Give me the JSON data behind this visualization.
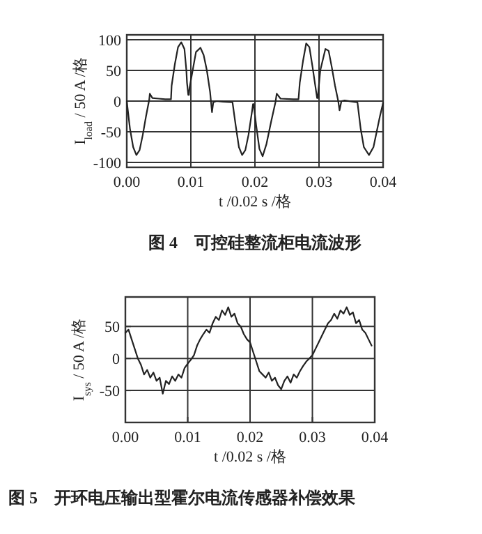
{
  "chart_data": [
    {
      "type": "line",
      "title": "图 4　可控硅整流柜电流波形",
      "xlabel": "t /0.02 s /格",
      "ylabel": "I$_{load}$ / 50 A /格",
      "xlim": [
        0,
        0.04
      ],
      "ylim": [
        -108,
        108
      ],
      "xticks": [
        {
          "value": 0,
          "label": "0.00"
        },
        {
          "value": 0.01,
          "label": "0.01"
        },
        {
          "value": 0.02,
          "label": "0.02"
        },
        {
          "value": 0.03,
          "label": "0.03"
        },
        {
          "value": 0.04,
          "label": "0.04"
        }
      ],
      "yticks": [
        100,
        50,
        0,
        -50,
        -100
      ],
      "grid": true,
      "line_style": "solid",
      "series": [
        {
          "color": "#222222",
          "x": [
            0,
            0.0005,
            0.001,
            0.0015,
            0.002,
            0.0025,
            0.003,
            0.0035,
            0.0036,
            0.004,
            0.005,
            0.006,
            0.0069,
            0.007,
            0.0075,
            0.008,
            0.0085,
            0.009,
            0.0093,
            0.0094,
            0.0096,
            0.0097,
            0.0098,
            0.0102,
            0.0108,
            0.0115,
            0.012,
            0.0125,
            0.013,
            0.0133,
            0.0135,
            0.014,
            0.015,
            0.0165,
            0.017,
            0.0175,
            0.018,
            0.0185,
            0.019,
            0.0195,
            0.0197,
            0.0198,
            0.0202,
            0.0207,
            0.0212,
            0.0218,
            0.0225,
            0.0232,
            0.0234,
            0.024,
            0.026,
            0.0268,
            0.027,
            0.0275,
            0.028,
            0.0285,
            0.029,
            0.0297,
            0.0298,
            0.0302,
            0.031,
            0.0315,
            0.032,
            0.0325,
            0.033,
            0.0332,
            0.0335,
            0.034,
            0.036,
            0.0365,
            0.037,
            0.0378,
            0.0385,
            0.039,
            0.0395,
            0.04
          ],
          "values": [
            0,
            -45,
            -75,
            -88,
            -80,
            -55,
            -25,
            2,
            12,
            5,
            4,
            3,
            3,
            25,
            60,
            88,
            96,
            85,
            50,
            30,
            10,
            10,
            22,
            45,
            80,
            87,
            75,
            50,
            15,
            -18,
            -2,
            0,
            -1,
            -2,
            -40,
            -75,
            -88,
            -80,
            -55,
            -20,
            -5,
            -5,
            -40,
            -78,
            -90,
            -70,
            -35,
            -2,
            12,
            4,
            3,
            3,
            30,
            65,
            94,
            88,
            55,
            5,
            5,
            50,
            85,
            82,
            55,
            25,
            0,
            -15,
            0,
            1,
            -2,
            -45,
            -75,
            -88,
            -75,
            -50,
            -25,
            -3
          ]
        }
      ]
    },
    {
      "type": "line",
      "title": "图 5　开环电压输出型霍尔电流传感器补偿效果",
      "xlabel": "t /0.02 s /格",
      "ylabel": "I$_{sys}$ / 50 A /格",
      "xlim": [
        0,
        0.04
      ],
      "ylim": [
        -100,
        96
      ],
      "xticks": [
        {
          "value": 0,
          "label": "0.00"
        },
        {
          "value": 0.01,
          "label": "0.01"
        },
        {
          "value": 0.02,
          "label": "0.02"
        },
        {
          "value": 0.03,
          "label": "0.03"
        },
        {
          "value": 0.04,
          "label": "0.04"
        }
      ],
      "yticks": [
        50,
        0,
        -50
      ],
      "grid": true,
      "line_style": "solid",
      "series": [
        {
          "color": "#222222",
          "x": [
            0,
            0.0005,
            0.001,
            0.0015,
            0.002,
            0.0025,
            0.003,
            0.0035,
            0.004,
            0.0045,
            0.005,
            0.0055,
            0.006,
            0.0065,
            0.007,
            0.0075,
            0.008,
            0.0085,
            0.009,
            0.0095,
            0.01,
            0.0105,
            0.011,
            0.0115,
            0.012,
            0.0125,
            0.013,
            0.0135,
            0.014,
            0.0145,
            0.015,
            0.0155,
            0.016,
            0.0165,
            0.017,
            0.0175,
            0.018,
            0.0185,
            0.019,
            0.0195,
            0.02,
            0.0205,
            0.021,
            0.0215,
            0.022,
            0.0225,
            0.023,
            0.0235,
            0.024,
            0.0245,
            0.025,
            0.0255,
            0.026,
            0.0265,
            0.027,
            0.0275,
            0.028,
            0.0285,
            0.029,
            0.0295,
            0.03,
            0.0305,
            0.031,
            0.0315,
            0.032,
            0.0325,
            0.033,
            0.0335,
            0.034,
            0.0345,
            0.035,
            0.0355,
            0.036,
            0.0365,
            0.037,
            0.0375,
            0.038,
            0.0385,
            0.039,
            0.0395
          ],
          "values": [
            40,
            45,
            30,
            15,
            0,
            -10,
            -25,
            -18,
            -30,
            -22,
            -35,
            -30,
            -55,
            -35,
            -40,
            -28,
            -35,
            -25,
            -30,
            -15,
            -8,
            -2,
            5,
            20,
            30,
            38,
            45,
            40,
            55,
            65,
            60,
            75,
            68,
            80,
            65,
            70,
            55,
            50,
            38,
            30,
            25,
            10,
            -5,
            -20,
            -25,
            -30,
            -22,
            -35,
            -30,
            -42,
            -48,
            -35,
            -28,
            -38,
            -25,
            -30,
            -20,
            -12,
            -5,
            0,
            5,
            15,
            25,
            35,
            45,
            55,
            60,
            70,
            62,
            75,
            70,
            80,
            68,
            72,
            55,
            60,
            45,
            40,
            30,
            20
          ]
        }
      ]
    }
  ]
}
